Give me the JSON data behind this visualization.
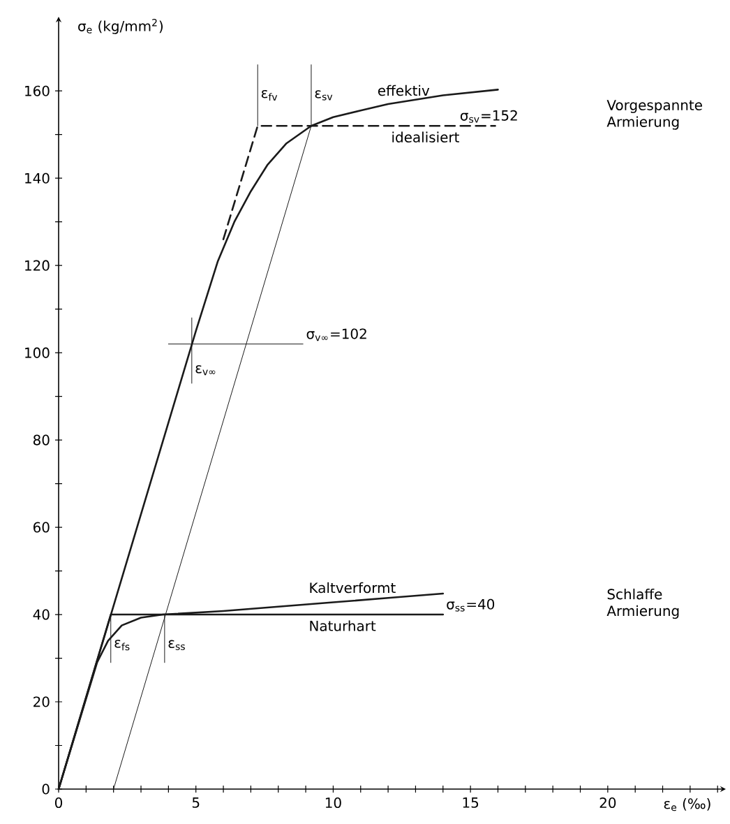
{
  "chart_data": {
    "type": "line",
    "ylabel": "σ$_{e}$ (kg/mm$^{2}$)",
    "xlabel": "ε$_{e}$ (‰)",
    "xlim": [
      0,
      24.3
    ],
    "ylim": [
      0,
      177
    ],
    "xticks": [
      0,
      {
        "value": 1,
        "label": null
      },
      {
        "value": 2,
        "label": null
      },
      {
        "value": 3,
        "label": null
      },
      {
        "value": 4,
        "label": null
      },
      5,
      {
        "value": 6,
        "label": null
      },
      {
        "value": 7,
        "label": null
      },
      {
        "value": 8,
        "label": null
      },
      {
        "value": 9,
        "label": null
      },
      10,
      {
        "value": 11,
        "label": null
      },
      {
        "value": 12,
        "label": null
      },
      {
        "value": 13,
        "label": null
      },
      {
        "value": 14,
        "label": null
      },
      15,
      {
        "value": 16,
        "label": null
      },
      {
        "value": 17,
        "label": null
      },
      {
        "value": 18,
        "label": null
      },
      {
        "value": 19,
        "label": null
      },
      20,
      {
        "value": 21,
        "label": null
      },
      {
        "value": 22,
        "label": null
      },
      {
        "value": 23,
        "label": null
      },
      {
        "value": 24,
        "label": null
      }
    ],
    "yticks": [
      0,
      {
        "value": 10,
        "label": null
      },
      20,
      {
        "value": 30,
        "label": null
      },
      40,
      {
        "value": 50,
        "label": null
      },
      60,
      {
        "value": 70,
        "label": null
      },
      80,
      {
        "value": 90,
        "label": null
      },
      100,
      {
        "value": 110,
        "label": null
      },
      120,
      {
        "value": 130,
        "label": null
      },
      140,
      {
        "value": 150,
        "label": null
      },
      160
    ],
    "series": [
      {
        "name": "effektiv",
        "color": "#1a1a1a",
        "x": [
          0,
          2,
          4,
          5,
          5.8,
          6.4,
          7.0,
          7.6,
          8.3,
          9.2,
          10,
          11,
          12,
          14,
          16
        ],
        "values": [
          0,
          42,
          84,
          105,
          121,
          130,
          137,
          143,
          148,
          152,
          154,
          155.5,
          157,
          159,
          160.3
        ]
      },
      {
        "name": "idealisiert",
        "color": "#1a1a1a",
        "line_style": "dashed",
        "x": [
          6.0,
          7.25,
          15.9
        ],
        "values": [
          126,
          152,
          152
        ]
      },
      {
        "color": "#1a1a1a",
        "x": [
          2,
          9.2,
          9.2,
          null,
          3.86,
          3.86
        ],
        "values": [
          0,
          152,
          166,
          null,
          40,
          29
        ]
      },
      {
        "color": "#1a1a1a",
        "x": [
          4.0,
          8.9,
          null,
          4.85,
          4.85
        ],
        "values": [
          102,
          102,
          null,
          108,
          93
        ]
      },
      {
        "color": "#1a1a1a",
        "x": [
          7.25,
          7.25
        ],
        "values": [
          152,
          166
        ]
      },
      {
        "name": "Kaltverformt",
        "color": "#1a1a1a",
        "x": [
          0,
          1.4,
          1.8,
          2.3,
          3.0,
          3.8,
          6,
          8,
          10,
          12,
          14
        ],
        "values": [
          0,
          29,
          34,
          37.5,
          39.3,
          40,
          40.8,
          41.8,
          42.8,
          43.8,
          44.8
        ]
      },
      {
        "name": "Naturhart",
        "color": "#1a1a1a",
        "x": [
          0,
          1.9,
          14
        ],
        "values": [
          0,
          40,
          40
        ]
      },
      {
        "color": "#1a1a1a",
        "x": [
          1.9,
          1.9
        ],
        "values": [
          40,
          29
        ]
      }
    ],
    "annotations": [
      {
        "text": "ε$_{fv}$",
        "x": 7.25,
        "y": 159
      },
      {
        "text": "ε$_{sv}$",
        "x": 9.2,
        "y": 159
      },
      {
        "text": "σ$_{sv}$=152",
        "x": 14.5,
        "y": 152
      },
      {
        "text": "σ$_{v∞}$=102",
        "x": 8.9,
        "y": 102
      },
      {
        "text": "ε$_{v∞}$",
        "x": 4.85,
        "y": 96
      },
      {
        "text": "σ$_{ss}$=40",
        "x": 14,
        "y": 40
      },
      {
        "text": "ε$_{fs}$",
        "x": 1.9,
        "y": 33
      },
      {
        "text": "ε$_{ss}$",
        "x": 3.86,
        "y": 33
      },
      "Vorgespannte Armierung",
      "Schlaffe Armierung"
    ]
  }
}
